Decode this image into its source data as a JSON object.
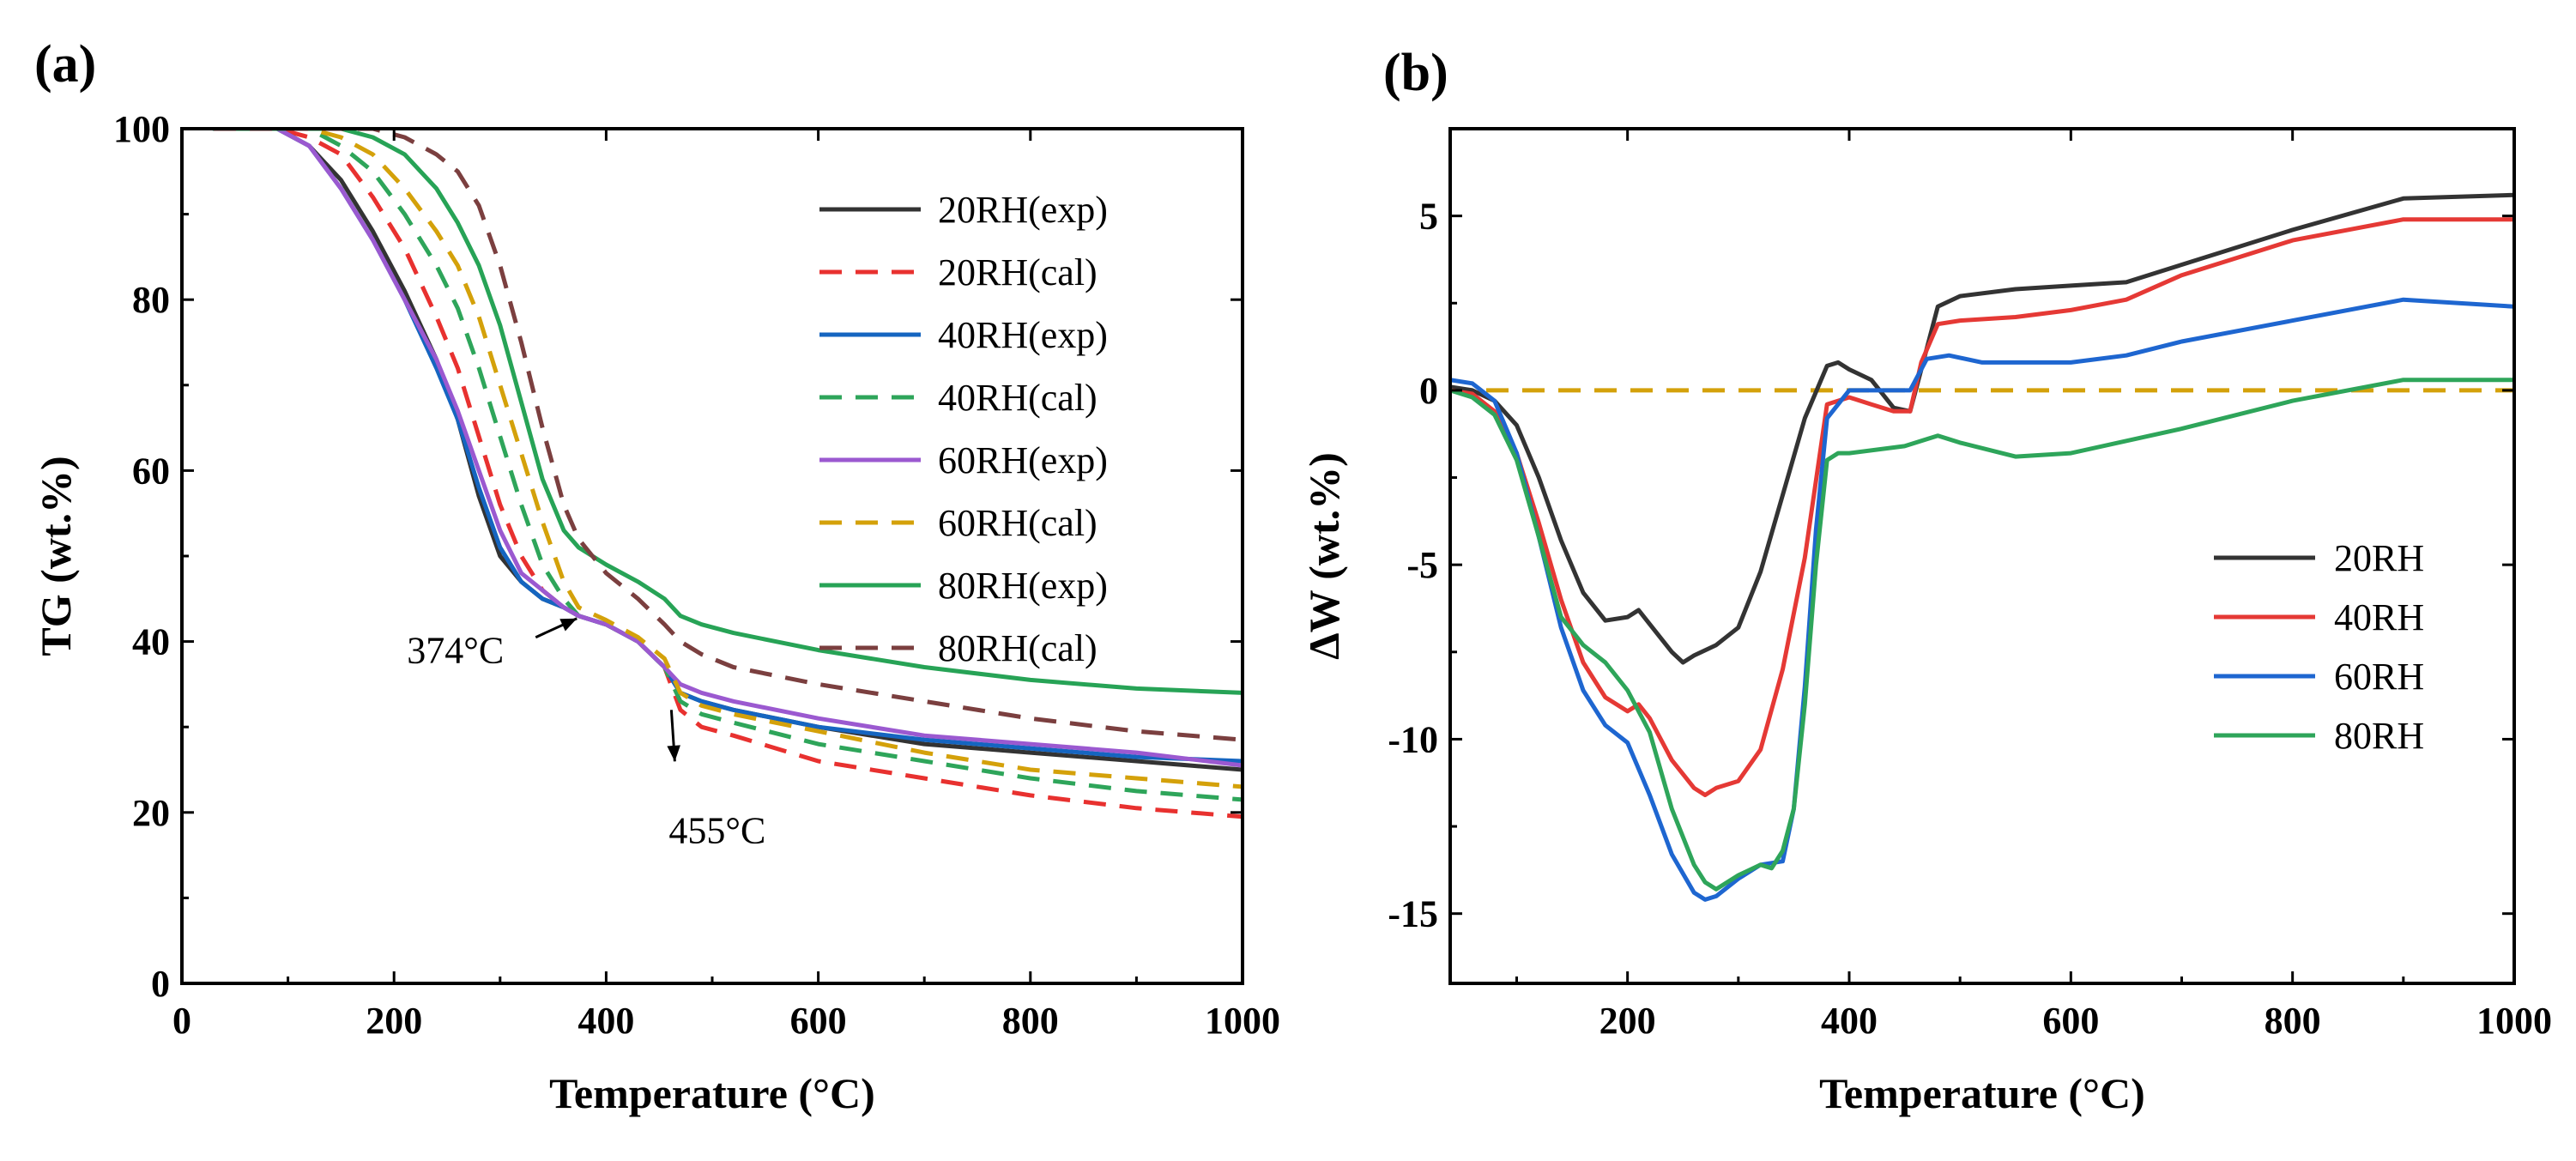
{
  "chart_data": [
    {
      "panel": "(a)",
      "type": "line",
      "xlabel": "Temperature (°C)",
      "ylabel": "TG (wt.%)",
      "xlim": [
        0,
        1000
      ],
      "ylim": [
        0,
        100
      ],
      "xticks": [
        0,
        200,
        400,
        600,
        800,
        1000
      ],
      "yticks": [
        0,
        20,
        40,
        60,
        80,
        100
      ],
      "legend_position": "top-right",
      "annotations": [
        {
          "text": "374°C",
          "x": 374,
          "y": 42.5
        },
        {
          "text": "455°C",
          "x": 455,
          "y": 33
        }
      ],
      "series": [
        {
          "name": "20RH(exp)",
          "color": "#333333",
          "dash": "solid",
          "x": [
            30,
            60,
            90,
            120,
            150,
            180,
            210,
            240,
            260,
            280,
            300,
            320,
            340,
            360,
            374,
            400,
            430,
            455,
            470,
            490,
            520,
            600,
            700,
            800,
            900,
            1000
          ],
          "y": [
            100,
            100,
            100,
            98,
            94,
            88,
            81,
            73,
            66,
            57,
            50,
            47,
            45,
            44,
            43,
            42,
            40,
            37,
            34,
            33,
            32,
            30,
            28,
            27,
            26,
            25
          ]
        },
        {
          "name": "20RH(cal)",
          "color": "#e8312f",
          "dash": "dashed",
          "x": [
            30,
            60,
            90,
            120,
            150,
            180,
            210,
            240,
            260,
            280,
            300,
            320,
            340,
            360,
            374,
            400,
            430,
            455,
            470,
            490,
            520,
            600,
            700,
            800,
            900,
            1000
          ],
          "y": [
            100,
            100,
            100,
            99,
            97,
            92,
            86,
            78,
            72,
            64,
            56,
            50,
            46,
            44,
            43,
            42,
            40,
            37,
            32,
            30,
            29,
            26,
            24,
            22,
            20.5,
            19.5
          ]
        },
        {
          "name": "40RH(exp)",
          "color": "#1565c0",
          "dash": "solid",
          "x": [
            30,
            60,
            90,
            120,
            150,
            180,
            210,
            240,
            260,
            280,
            300,
            320,
            340,
            360,
            374,
            400,
            430,
            455,
            470,
            490,
            520,
            600,
            700,
            800,
            900,
            1000
          ],
          "y": [
            100,
            100,
            100,
            98,
            93,
            87,
            80,
            72,
            66,
            58,
            51,
            47,
            45,
            44,
            43,
            42,
            40,
            37,
            34,
            33,
            32,
            30,
            28.5,
            27.5,
            26.5,
            26
          ]
        },
        {
          "name": "40RH(cal)",
          "color": "#2ea55a",
          "dash": "dashed",
          "x": [
            30,
            60,
            90,
            120,
            150,
            180,
            210,
            240,
            260,
            280,
            300,
            320,
            340,
            360,
            374,
            400,
            430,
            455,
            470,
            490,
            520,
            600,
            700,
            800,
            900,
            1000
          ],
          "y": [
            100,
            100,
            100,
            100,
            98,
            95,
            90,
            84,
            79,
            72,
            64,
            56,
            49,
            45,
            43,
            42,
            40,
            37,
            33,
            31.5,
            30.5,
            28,
            26,
            24,
            22.5,
            21.5
          ]
        },
        {
          "name": "60RH(exp)",
          "color": "#9b59d0",
          "dash": "solid",
          "x": [
            30,
            60,
            90,
            120,
            150,
            180,
            210,
            240,
            260,
            280,
            300,
            320,
            340,
            360,
            374,
            400,
            430,
            455,
            470,
            490,
            520,
            600,
            700,
            800,
            900,
            1000
          ],
          "y": [
            100,
            100,
            100,
            98,
            93,
            87,
            80,
            73,
            67,
            60,
            53,
            48,
            46,
            44,
            43,
            42,
            40,
            37,
            35,
            34,
            33,
            31,
            29,
            28,
            27,
            25.5
          ]
        },
        {
          "name": "60RH(cal)",
          "color": "#d4a10a",
          "dash": "dashed",
          "x": [
            30,
            60,
            90,
            120,
            150,
            180,
            210,
            240,
            260,
            280,
            300,
            320,
            340,
            360,
            374,
            400,
            430,
            455,
            470,
            490,
            520,
            600,
            700,
            800,
            900,
            1000
          ],
          "y": [
            100,
            100,
            100,
            100,
            99,
            97,
            93,
            88,
            84,
            78,
            70,
            62,
            54,
            47,
            44,
            42.5,
            40.5,
            38,
            34,
            32.5,
            31.5,
            29.5,
            27,
            25,
            24,
            23
          ]
        },
        {
          "name": "80RH(exp)",
          "color": "#27a356",
          "dash": "solid",
          "x": [
            30,
            60,
            90,
            120,
            150,
            180,
            210,
            240,
            260,
            280,
            300,
            320,
            340,
            360,
            374,
            400,
            430,
            455,
            470,
            490,
            520,
            600,
            700,
            800,
            900,
            1000
          ],
          "y": [
            100,
            100,
            100,
            100,
            100,
            99,
            97,
            93,
            89,
            84,
            77,
            68,
            59,
            53,
            51,
            49,
            47,
            45,
            43,
            42,
            41,
            39,
            37,
            35.5,
            34.5,
            34
          ]
        },
        {
          "name": "80RH(cal)",
          "color": "#7b3f3f",
          "dash": "dashed",
          "x": [
            30,
            60,
            90,
            120,
            150,
            180,
            210,
            240,
            260,
            280,
            300,
            320,
            340,
            360,
            374,
            400,
            430,
            455,
            470,
            490,
            520,
            600,
            700,
            800,
            900,
            1000
          ],
          "y": [
            100,
            100,
            100,
            100,
            100,
            100,
            99,
            97,
            95,
            91,
            84,
            75,
            65,
            56,
            52,
            48,
            45,
            42,
            40,
            38.5,
            37,
            35,
            33,
            31,
            29.5,
            28.5
          ]
        }
      ]
    },
    {
      "panel": "(b)",
      "type": "line",
      "xlabel": "Temperature (°C)",
      "ylabel": "ΔW (wt.%)",
      "xlim": [
        40,
        1000
      ],
      "ylim": [
        -17,
        7.5
      ],
      "xticks": [
        200,
        400,
        600,
        800,
        1000
      ],
      "yticks": [
        5,
        0,
        -5,
        -10,
        -15
      ],
      "xtick_labels": [
        "200",
        "400",
        "600",
        "800",
        "1000"
      ],
      "ytick_labels": [
        "5",
        "0",
        "-5",
        "-10",
        "-15"
      ],
      "legend_position": "lower-right",
      "reference_line": {
        "y": 0,
        "color": "#d4a10a",
        "dash": "dashed"
      },
      "series": [
        {
          "name": "20RH",
          "color": "#333333",
          "x": [
            40,
            60,
            80,
            100,
            120,
            140,
            160,
            180,
            200,
            210,
            220,
            240,
            250,
            260,
            280,
            300,
            320,
            340,
            360,
            380,
            390,
            400,
            420,
            440,
            455,
            465,
            480,
            500,
            550,
            600,
            650,
            700,
            800,
            900,
            1000
          ],
          "y": [
            0.1,
            0,
            -0.3,
            -1,
            -2.5,
            -4.3,
            -5.8,
            -6.6,
            -6.5,
            -6.3,
            -6.7,
            -7.5,
            -7.8,
            -7.6,
            -7.3,
            -6.8,
            -5.2,
            -3,
            -0.8,
            0.7,
            0.8,
            0.6,
            0.3,
            -0.5,
            -0.6,
            0.6,
            2.4,
            2.7,
            2.9,
            3,
            3.1,
            3.6,
            4.6,
            5.5,
            5.6
          ]
        },
        {
          "name": "40RH",
          "color": "#e53935",
          "x": [
            40,
            60,
            80,
            100,
            120,
            140,
            160,
            180,
            200,
            210,
            220,
            240,
            260,
            270,
            280,
            300,
            320,
            340,
            360,
            380,
            400,
            420,
            440,
            455,
            465,
            480,
            500,
            550,
            600,
            650,
            700,
            800,
            900,
            1000
          ],
          "y": [
            0,
            -0.1,
            -0.6,
            -1.8,
            -3.8,
            -6,
            -7.8,
            -8.8,
            -9.2,
            -9,
            -9.4,
            -10.6,
            -11.4,
            -11.6,
            -11.4,
            -11.2,
            -10.3,
            -8,
            -4.8,
            -0.4,
            -0.2,
            -0.4,
            -0.6,
            -0.6,
            0.8,
            1.9,
            2,
            2.1,
            2.3,
            2.6,
            3.3,
            4.3,
            4.9,
            4.9
          ]
        },
        {
          "name": "60RH",
          "color": "#1e66d0",
          "x": [
            40,
            60,
            80,
            100,
            120,
            140,
            160,
            180,
            200,
            220,
            240,
            260,
            270,
            280,
            300,
            320,
            340,
            350,
            360,
            370,
            380,
            400,
            420,
            440,
            455,
            470,
            490,
            520,
            600,
            650,
            700,
            800,
            900,
            1000
          ],
          "y": [
            0.3,
            0.2,
            -0.3,
            -1.8,
            -4.2,
            -6.8,
            -8.6,
            -9.6,
            -10.1,
            -11.6,
            -13.3,
            -14.4,
            -14.6,
            -14.5,
            -14,
            -13.6,
            -13.5,
            -12,
            -8.5,
            -4,
            -0.8,
            0,
            0,
            0,
            0,
            0.9,
            1,
            0.8,
            0.8,
            1,
            1.4,
            2,
            2.6,
            2.4
          ]
        },
        {
          "name": "80RH",
          "color": "#2ea55a",
          "x": [
            40,
            60,
            80,
            100,
            120,
            140,
            160,
            180,
            200,
            220,
            240,
            260,
            270,
            280,
            300,
            320,
            330,
            340,
            350,
            360,
            370,
            380,
            390,
            400,
            450,
            480,
            500,
            550,
            600,
            700,
            800,
            900,
            1000
          ],
          "y": [
            0,
            -0.2,
            -0.7,
            -2,
            -4.2,
            -6.5,
            -7.3,
            -7.8,
            -8.6,
            -9.8,
            -12,
            -13.6,
            -14.1,
            -14.3,
            -13.9,
            -13.6,
            -13.7,
            -13.2,
            -12,
            -9,
            -5,
            -2,
            -1.8,
            -1.8,
            -1.6,
            -1.3,
            -1.5,
            -1.9,
            -1.8,
            -1.1,
            -0.3,
            0.3,
            0.3
          ]
        }
      ]
    }
  ]
}
